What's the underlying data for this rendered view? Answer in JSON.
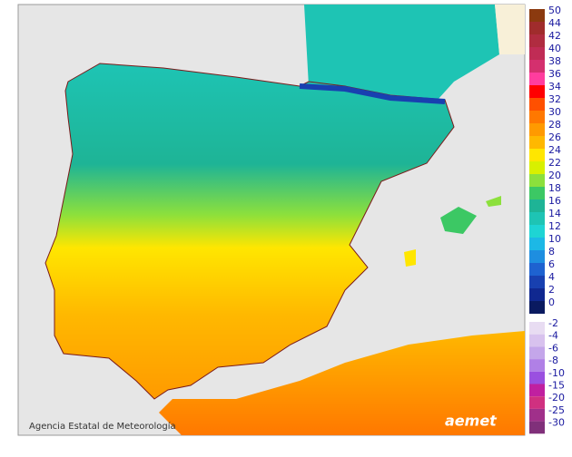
{
  "credit": "Agencia Estatal de Meteorología",
  "logo": "aemet",
  "legend": {
    "upper": [
      {
        "label": 50,
        "color": "#8b3a0f"
      },
      {
        "label": 44,
        "color": "#a02c2c"
      },
      {
        "label": 42,
        "color": "#b02c40"
      },
      {
        "label": 40,
        "color": "#c02c55"
      },
      {
        "label": 38,
        "color": "#d4306e"
      },
      {
        "label": 36,
        "color": "#ff3d9e"
      },
      {
        "label": 34,
        "color": "#ff0000"
      },
      {
        "label": 32,
        "color": "#ff5000"
      },
      {
        "label": 30,
        "color": "#ff7800"
      },
      {
        "label": 28,
        "color": "#ff9a00"
      },
      {
        "label": 26,
        "color": "#ffb800"
      },
      {
        "label": 24,
        "color": "#ffe600"
      },
      {
        "label": 22,
        "color": "#d8f000"
      },
      {
        "label": 20,
        "color": "#8ce03c"
      },
      {
        "label": 18,
        "color": "#3cc864"
      },
      {
        "label": 16,
        "color": "#1eb496"
      },
      {
        "label": 14,
        "color": "#1ec4b4"
      },
      {
        "label": 12,
        "color": "#1ed4d4"
      },
      {
        "label": 10,
        "color": "#1cb8e6"
      },
      {
        "label": 8,
        "color": "#1e8ee0"
      },
      {
        "label": 6,
        "color": "#1e62d0"
      },
      {
        "label": 4,
        "color": "#1840b0"
      },
      {
        "label": 2,
        "color": "#102890"
      },
      {
        "label": 0,
        "color": "#0a1a60"
      }
    ],
    "lower": [
      {
        "label": -2,
        "color": "#e8dcf2"
      },
      {
        "label": -4,
        "color": "#d8c2ee"
      },
      {
        "label": -6,
        "color": "#c4a6ea"
      },
      {
        "label": -8,
        "color": "#b080e6"
      },
      {
        "label": -10,
        "color": "#9a50e0"
      },
      {
        "label": -15,
        "color": "#c020a0"
      },
      {
        "label": -20,
        "color": "#d03080"
      },
      {
        "label": -25,
        "color": "#a0308a"
      },
      {
        "label": -30,
        "color": "#80307a"
      }
    ]
  }
}
